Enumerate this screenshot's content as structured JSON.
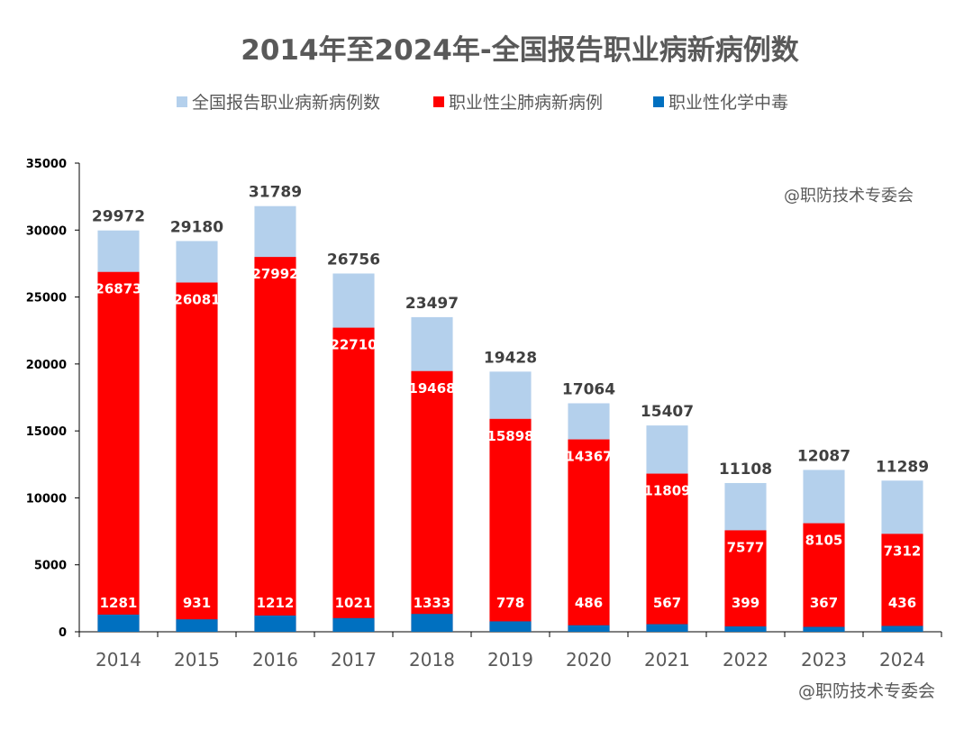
{
  "chart_data": {
    "type": "bar",
    "stacked": "overlay",
    "title": "2014年至2024年-全国报告职业病新病例数",
    "watermark_top": "@职防技术专委会",
    "watermark_bottom": "@职防技术专委会",
    "categories": [
      "2014",
      "2015",
      "2016",
      "2017",
      "2018",
      "2019",
      "2020",
      "2021",
      "2022",
      "2023",
      "2024"
    ],
    "series": [
      {
        "name": "全国报告职业病新病例数",
        "color": "#b4d0ec",
        "label_color": "#404040",
        "values": [
          29972,
          29180,
          31789,
          26756,
          23497,
          19428,
          17064,
          15407,
          11108,
          12087,
          11289
        ]
      },
      {
        "name": "职业性尘肺病新病例",
        "color": "#ff0000",
        "label_color": "#ffffff",
        "values": [
          26873,
          26081,
          27992,
          22710,
          19468,
          15898,
          14367,
          11809,
          7577,
          8105,
          7312
        ]
      },
      {
        "name": "职业性化学中毒",
        "color": "#0070c0",
        "label_color": "#ffffff",
        "values": [
          1281,
          931,
          1212,
          1021,
          1333,
          778,
          486,
          567,
          399,
          367,
          436
        ]
      }
    ],
    "y_ticks": [
      "0",
      "5000",
      "10000",
      "15000",
      "20000",
      "25000",
      "30000",
      "35000"
    ],
    "ylim": [
      0,
      35000
    ],
    "legend_position": "top",
    "grid": false
  }
}
